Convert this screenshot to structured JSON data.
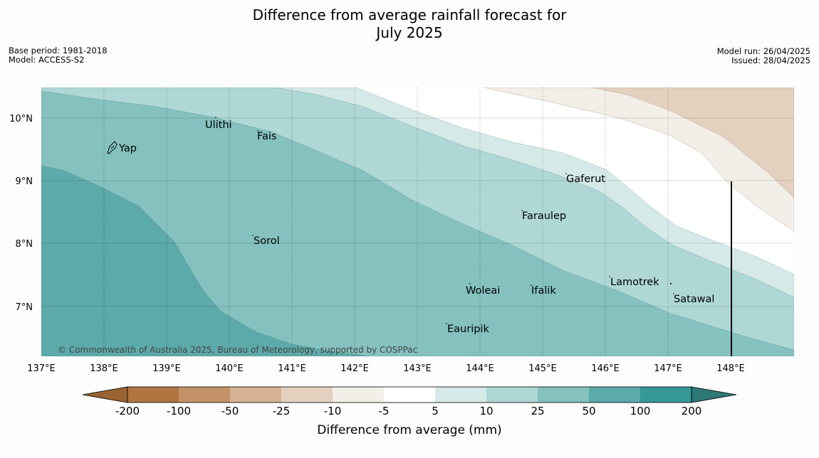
{
  "title_line1": "Difference from average rainfall forecast for",
  "title_line2": "July 2025",
  "meta_left": {
    "base_period": "Base period: 1981-2018",
    "model": "Model: ACCESS-S2"
  },
  "meta_right": {
    "model_run": "Model run: 26/04/2025",
    "issued": "Issued: 28/04/2025"
  },
  "copyright": "© Commonwealth of Australia 2025, Bureau of Meteorology, supported by COSPPac",
  "lat_labels": [
    "10°N",
    "9°N",
    "8°N",
    "7°N"
  ],
  "lon_labels": [
    "137°E",
    "138°E",
    "139°E",
    "140°E",
    "141°E",
    "142°E",
    "143°E",
    "144°E",
    "145°E",
    "146°E",
    "147°E",
    "148°E"
  ],
  "places": [
    "Yap",
    "Ulithi",
    "Fais",
    "Gaferut",
    "Faraulep",
    "Sorol",
    "Woleai",
    "Ifalik",
    "Lamotrek",
    "Satawal",
    "Eauripik"
  ],
  "colorbar": {
    "title": "Difference from average (mm)",
    "labels": [
      "-200",
      "-100",
      "-50",
      "-25",
      "-10",
      "-5",
      "5",
      "10",
      "25",
      "50",
      "100",
      "200"
    ],
    "colors": [
      "#9a6432",
      "#b07540",
      "#c39266",
      "#d5b394",
      "#e3d0bf",
      "#f2eee8",
      "#ffffff",
      "#d5e9e8",
      "#aed7d6",
      "#84c1bf",
      "#5caaa9",
      "#359897",
      "#2e7877"
    ]
  }
}
